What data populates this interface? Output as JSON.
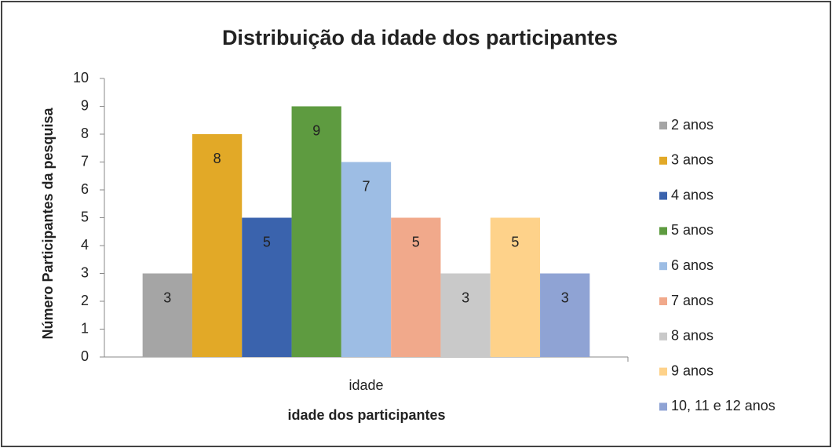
{
  "chart_data": {
    "type": "bar",
    "title": "Distribuição da idade dos participantes",
    "x_label": "idade dos participantes",
    "y_label": "Número Participantes da pesquisa",
    "categories": [
      "idade"
    ],
    "series": [
      {
        "name": "2 anos",
        "color": "#a5a5a5",
        "values": [
          3
        ]
      },
      {
        "name": "3 anos",
        "color": "#e2a927",
        "values": [
          8
        ]
      },
      {
        "name": "4 anos",
        "color": "#3a63ad",
        "values": [
          5
        ]
      },
      {
        "name": "5 anos",
        "color": "#5e9b40",
        "values": [
          9
        ]
      },
      {
        "name": "6 anos",
        "color": "#9dbde4",
        "values": [
          7
        ]
      },
      {
        "name": "7 anos",
        "color": "#f1a98b",
        "values": [
          5
        ]
      },
      {
        "name": "8 anos",
        "color": "#c9c9c9",
        "values": [
          3
        ]
      },
      {
        "name": "9 anos",
        "color": "#fed28a",
        "values": [
          5
        ]
      },
      {
        "name": "10, 11 e 12 anos",
        "color": "#8fa3d4",
        "values": [
          3
        ]
      }
    ],
    "ylim": [
      0,
      10
    ],
    "yticks": [
      0,
      1,
      2,
      3,
      4,
      5,
      6,
      7,
      8,
      9,
      10
    ],
    "legend": "right"
  }
}
